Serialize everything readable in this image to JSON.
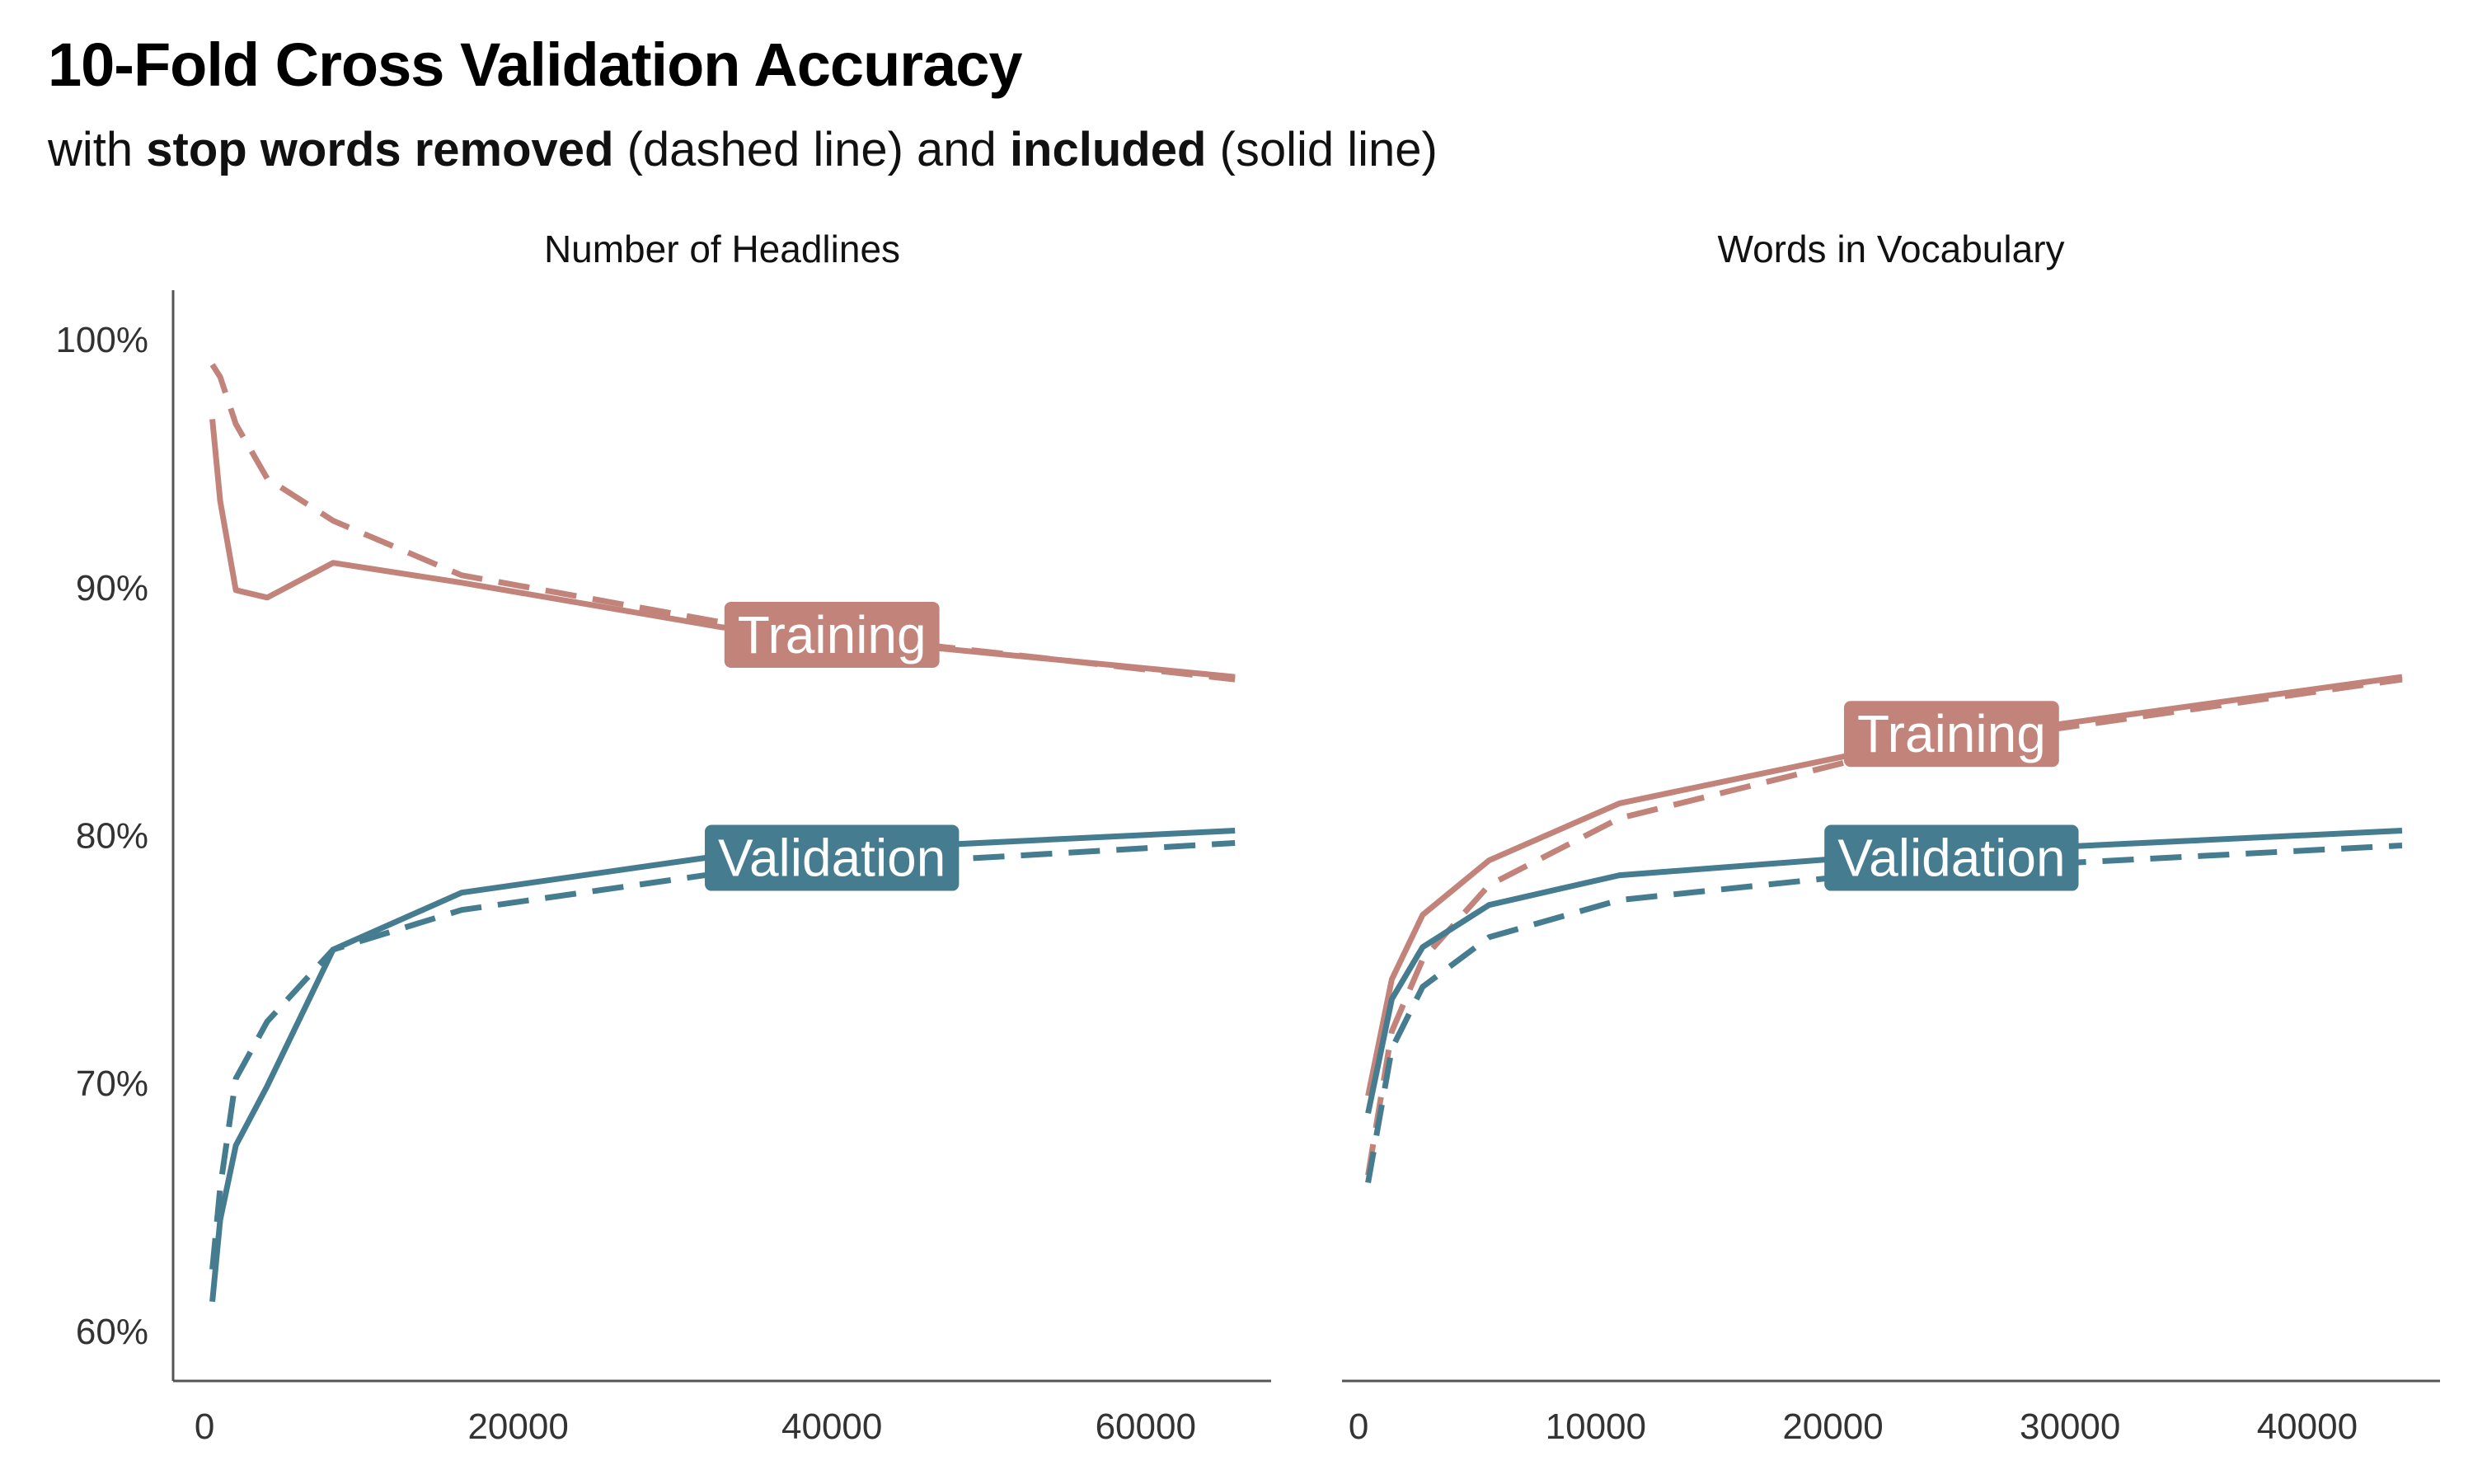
{
  "title": "10-Fold Cross Validation Accuracy",
  "subtitle": {
    "prefix": "with ",
    "bold1": "stop words removed",
    "middle": " (dashed line) and ",
    "bold2": "included",
    "suffix": " (solid line)"
  },
  "colors": {
    "training": "#c1837a",
    "validation": "#457c90",
    "axis": "#555555"
  },
  "chart_data": [
    {
      "type": "line",
      "facet": "Number of Headlines",
      "xlim": [
        -2000,
        68000
      ],
      "ylim": [
        0.58,
        1.02
      ],
      "x_ticks": [
        0,
        20000,
        40000,
        60000
      ],
      "x_tick_labels": [
        "0",
        "20000",
        "40000",
        "60000"
      ],
      "y_ticks": [
        0.6,
        0.7,
        0.8,
        0.9,
        1.0
      ],
      "y_tick_labels": [
        "60%",
        "70%",
        "80%",
        "90%",
        "100%"
      ],
      "grid": false,
      "series": [
        {
          "group": "Training",
          "linetype": "solid",
          "x": [
            500,
            1000,
            2000,
            4000,
            8200,
            16400,
            33000,
            65700
          ],
          "y": [
            0.968,
            0.935,
            0.899,
            0.896,
            0.91,
            0.902,
            0.884,
            0.864
          ]
        },
        {
          "group": "Training",
          "linetype": "dashed",
          "x": [
            500,
            1000,
            2000,
            4000,
            8200,
            16400,
            33000,
            65700
          ],
          "y": [
            0.99,
            0.985,
            0.966,
            0.944,
            0.927,
            0.905,
            0.886,
            0.863
          ]
        },
        {
          "group": "Validation",
          "linetype": "solid",
          "x": [
            500,
            1000,
            2000,
            4000,
            8200,
            16400,
            33000,
            65700
          ],
          "y": [
            0.612,
            0.645,
            0.675,
            0.699,
            0.754,
            0.777,
            0.792,
            0.802
          ]
        },
        {
          "group": "Validation",
          "linetype": "dashed",
          "x": [
            500,
            1000,
            2000,
            4000,
            8200,
            16400,
            33000,
            65700
          ],
          "y": [
            0.625,
            0.658,
            0.702,
            0.725,
            0.754,
            0.77,
            0.785,
            0.797
          ]
        }
      ],
      "labels": [
        {
          "text": "Training",
          "group": "Training",
          "x": 40000,
          "y": 0.881
        },
        {
          "text": "Validation",
          "group": "Validation",
          "x": 40000,
          "y": 0.791
        }
      ]
    },
    {
      "type": "line",
      "facet": "Words in Vocabulary",
      "xlim": [
        -700,
        45600
      ],
      "ylim": [
        0.58,
        1.02
      ],
      "x_ticks": [
        0,
        10000,
        20000,
        30000,
        40000
      ],
      "x_tick_labels": [
        "0",
        "10000",
        "20000",
        "30000",
        "40000"
      ],
      "grid": false,
      "series": [
        {
          "group": "Training",
          "linetype": "solid",
          "x": [
            400,
            1400,
            2700,
            5500,
            11000,
            22000,
            44000
          ],
          "y": [
            0.695,
            0.742,
            0.768,
            0.79,
            0.813,
            0.835,
            0.864
          ]
        },
        {
          "group": "Training",
          "linetype": "dashed",
          "x": [
            400,
            1400,
            2700,
            5500,
            11000,
            22000,
            44000
          ],
          "y": [
            0.663,
            0.721,
            0.75,
            0.78,
            0.807,
            0.833,
            0.863
          ]
        },
        {
          "group": "Validation",
          "linetype": "solid",
          "x": [
            400,
            1400,
            2700,
            5500,
            11000,
            22000,
            44000
          ],
          "y": [
            0.688,
            0.734,
            0.755,
            0.772,
            0.784,
            0.792,
            0.802
          ]
        },
        {
          "group": "Validation",
          "linetype": "dashed",
          "x": [
            400,
            1400,
            2700,
            5500,
            11000,
            22000,
            44000
          ],
          "y": [
            0.66,
            0.714,
            0.739,
            0.759,
            0.774,
            0.785,
            0.796
          ]
        }
      ],
      "labels": [
        {
          "text": "Training",
          "group": "Training",
          "x": 25000,
          "y": 0.841
        },
        {
          "text": "Validation",
          "group": "Validation",
          "x": 25000,
          "y": 0.791
        }
      ]
    }
  ]
}
